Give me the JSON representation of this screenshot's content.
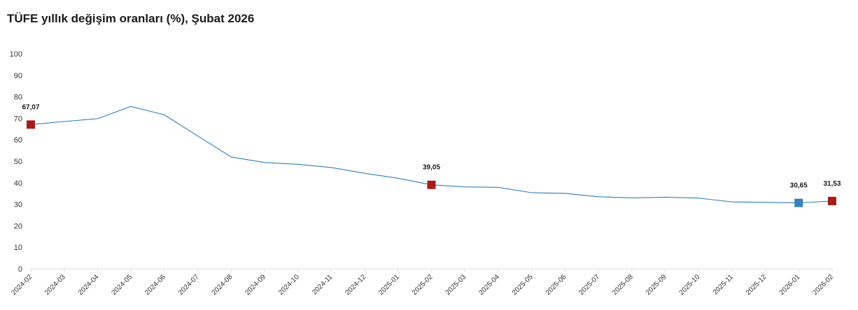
{
  "title": "TÜFE yıllık değişim oranları (%), Şubat 2026",
  "colors": {
    "line": "#2f7fb5",
    "marker_red": "#a61c1c",
    "marker_blue": "#3a7fbf",
    "axis": "#d9d9d9"
  },
  "chart_data": {
    "type": "line",
    "title": "TÜFE yıllık değişim oranları (%), Şubat 2026",
    "xlabel": "",
    "ylabel": "",
    "ylim": [
      0,
      100
    ],
    "yticks": [
      "0",
      "10",
      "20",
      "30",
      "40",
      "50",
      "60",
      "70",
      "80",
      "90",
      "100"
    ],
    "grid": false,
    "categories": [
      "2024-02",
      "2024-03",
      "2024-04",
      "2024-05",
      "2024-06",
      "2024-07",
      "2024-08",
      "2024-09",
      "2024-10",
      "2024-11",
      "2024-12",
      "2025-01",
      "2025-02",
      "2025-03",
      "2025-04",
      "2025-05",
      "2025-06",
      "2025-07",
      "2025-08",
      "2025-09",
      "2025-10",
      "2025-11",
      "2025-12",
      "2026-01",
      "2026-02"
    ],
    "series": [
      {
        "values": [
          67.07,
          68.5,
          69.8,
          75.5,
          71.6,
          61.8,
          52.0,
          49.4,
          48.6,
          47.1,
          44.4,
          42.1,
          39.05,
          38.1,
          37.9,
          35.4,
          35.1,
          33.5,
          33.0,
          33.3,
          32.9,
          31.1,
          30.9,
          30.65,
          31.53
        ]
      }
    ],
    "highlighted_points": [
      {
        "category": "2024-02",
        "value": 67.07,
        "label": "67,07",
        "color": "#a61c1c"
      },
      {
        "category": "2025-02",
        "value": 39.05,
        "label": "39,05",
        "color": "#a61c1c"
      },
      {
        "category": "2026-01",
        "value": 30.65,
        "label": "30,65",
        "color": "#3a7fbf"
      },
      {
        "category": "2026-02",
        "value": 31.53,
        "label": "31,53",
        "color": "#a61c1c"
      }
    ]
  }
}
